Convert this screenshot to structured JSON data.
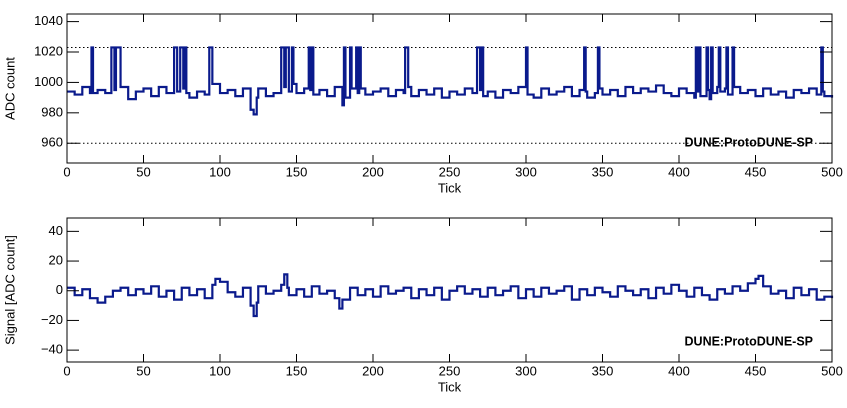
{
  "chart_data": [
    {
      "type": "step",
      "xlabel": "Tick",
      "ylabel": "ADC count",
      "annotation": "DUNE:ProtoDUNE-SP",
      "color": "#0a1a8c",
      "xlim": [
        0,
        500
      ],
      "xticks": [
        0,
        50,
        100,
        150,
        200,
        250,
        300,
        350,
        400,
        450,
        500
      ],
      "ylim": [
        947,
        1045
      ],
      "yticks": [
        960,
        980,
        1000,
        1020,
        1040
      ],
      "hlines": [
        1023,
        960
      ],
      "x": [
        0,
        5,
        10,
        15,
        16,
        17,
        20,
        25,
        29,
        31,
        32,
        35,
        40,
        45,
        50,
        55,
        60,
        65,
        70,
        72,
        74,
        76,
        77,
        78,
        80,
        85,
        90,
        93,
        95,
        100,
        105,
        110,
        115,
        120,
        122,
        124,
        125,
        130,
        135,
        140,
        142,
        143,
        145,
        147,
        148,
        150,
        155,
        158,
        159,
        160,
        161,
        165,
        170,
        175,
        180,
        181,
        182,
        185,
        186,
        189,
        190,
        191,
        192,
        195,
        200,
        205,
        210,
        215,
        220,
        221,
        223,
        225,
        230,
        235,
        240,
        245,
        250,
        255,
        260,
        265,
        268,
        270,
        271,
        272,
        275,
        280,
        285,
        290,
        295,
        300,
        301,
        305,
        310,
        315,
        320,
        325,
        330,
        335,
        338,
        339,
        340,
        345,
        347,
        348,
        350,
        355,
        360,
        365,
        370,
        375,
        380,
        385,
        390,
        395,
        400,
        405,
        410,
        411,
        412,
        413,
        414,
        418,
        419,
        420,
        421,
        422,
        425,
        426,
        427,
        430,
        431,
        432,
        435,
        436,
        440,
        445,
        450,
        455,
        460,
        465,
        470,
        475,
        480,
        485,
        490,
        493,
        494,
        495,
        500
      ],
      "values": [
        994,
        992,
        997,
        993,
        1023,
        993,
        995,
        993,
        1023,
        995,
        1023,
        997,
        989,
        994,
        996,
        991,
        997,
        993,
        1023,
        994,
        1023,
        996,
        1023,
        993,
        990,
        994,
        992,
        1023,
        999,
        993,
        995,
        991,
        996,
        982,
        979,
        990,
        996,
        991,
        993,
        1023,
        997,
        1023,
        994,
        1023,
        999,
        993,
        996,
        1023,
        995,
        1023,
        992,
        995,
        991,
        997,
        985,
        1023,
        990,
        1023,
        996,
        1023,
        993,
        1023,
        996,
        992,
        994,
        996,
        991,
        995,
        993,
        1023,
        997,
        991,
        995,
        992,
        996,
        990,
        994,
        992,
        996,
        993,
        1023,
        995,
        1023,
        991,
        994,
        990,
        995,
        993,
        997,
        1023,
        992,
        990,
        996,
        992,
        994,
        997,
        991,
        995,
        1023,
        994,
        990,
        993,
        1023,
        996,
        992,
        995,
        991,
        997,
        993,
        996,
        994,
        998,
        993,
        991,
        996,
        993,
        990,
        1023,
        994,
        1023,
        991,
        1023,
        995,
        989,
        1023,
        993,
        997,
        1023,
        994,
        996,
        1023,
        992,
        1023,
        997,
        993,
        995,
        991,
        996,
        992,
        994,
        990,
        995,
        993,
        996,
        992,
        1023,
        994,
        991,
        990
      ]
    },
    {
      "type": "step",
      "xlabel": "Tick",
      "ylabel": "Signal [ADC count]",
      "annotation": "DUNE:ProtoDUNE-SP",
      "color": "#0a1a8c",
      "xlim": [
        0,
        500
      ],
      "xticks": [
        0,
        50,
        100,
        150,
        200,
        250,
        300,
        350,
        400,
        450,
        500
      ],
      "ylim": [
        -48,
        49
      ],
      "yticks": [
        {
          "value": -40,
          "label": "−40"
        },
        {
          "value": -20,
          "label": "−20"
        },
        0,
        20,
        40
      ],
      "x": [
        0,
        5,
        10,
        15,
        20,
        25,
        30,
        35,
        40,
        45,
        50,
        55,
        60,
        65,
        70,
        75,
        80,
        85,
        90,
        95,
        97,
        100,
        105,
        110,
        115,
        120,
        122,
        124,
        125,
        130,
        135,
        140,
        142,
        144,
        145,
        150,
        155,
        160,
        165,
        170,
        175,
        178,
        180,
        185,
        190,
        195,
        200,
        205,
        210,
        215,
        220,
        225,
        230,
        235,
        240,
        245,
        250,
        255,
        260,
        265,
        270,
        275,
        280,
        285,
        290,
        295,
        300,
        305,
        310,
        315,
        320,
        325,
        330,
        335,
        340,
        345,
        350,
        355,
        360,
        365,
        370,
        375,
        380,
        385,
        390,
        395,
        400,
        405,
        410,
        415,
        420,
        425,
        430,
        435,
        440,
        445,
        450,
        452,
        455,
        460,
        465,
        470,
        475,
        480,
        485,
        490,
        495,
        500
      ],
      "values": [
        2,
        -3,
        1,
        -5,
        -8,
        -4,
        0,
        2,
        -3,
        1,
        -2,
        3,
        -4,
        0,
        -6,
        2,
        -3,
        1,
        -5,
        4,
        8,
        6,
        -1,
        -4,
        2,
        -10,
        -17,
        -8,
        3,
        -2,
        0,
        4,
        11,
        2,
        -3,
        1,
        -4,
        3,
        -2,
        0,
        -5,
        -12,
        -6,
        2,
        -3,
        1,
        -4,
        3,
        -2,
        0,
        2,
        -5,
        1,
        -3,
        2,
        -6,
        0,
        3,
        -2,
        1,
        -4,
        2,
        -3,
        0,
        3,
        -5,
        1,
        -4,
        2,
        -2,
        0,
        3,
        -6,
        1,
        -3,
        2,
        -1,
        -4,
        3,
        0,
        -3,
        1,
        -5,
        2,
        -2,
        4,
        0,
        -4,
        2,
        -3,
        -6,
        1,
        -2,
        3,
        0,
        5,
        8,
        10,
        3,
        -2,
        0,
        -5,
        2,
        -3,
        1,
        -6,
        -4,
        -5
      ]
    }
  ]
}
